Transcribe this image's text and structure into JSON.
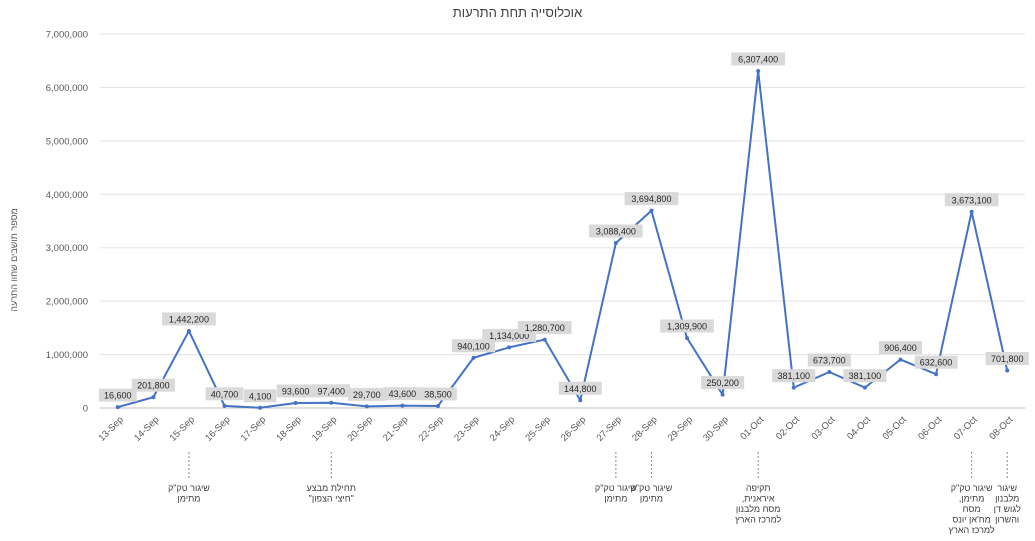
{
  "chart_data": {
    "type": "line",
    "title": "אוכלוסייה תחת התרעות",
    "xlabel": "",
    "ylabel": "מספר תושבים שחוו התרעה",
    "ylim": [
      0,
      7000000
    ],
    "y_ticks": [
      "0",
      "1,000,000",
      "2,000,000",
      "3,000,000",
      "4,000,000",
      "5,000,000",
      "6,000,000",
      "7,000,000"
    ],
    "grid": true,
    "legend": "none",
    "line_color": "#4472c4",
    "categories": [
      "13-Sep",
      "14-Sep",
      "15-Sep",
      "16-Sep",
      "17-Sep",
      "18-Sep",
      "19-Sep",
      "20-Sep",
      "21-Sep",
      "22-Sep",
      "23-Sep",
      "24-Sep",
      "25-Sep",
      "26-Sep",
      "27-Sep",
      "28-Sep",
      "29-Sep",
      "30-Sep",
      "01-Oct",
      "02-Oct",
      "03-Oct",
      "04-Oct",
      "05-Oct",
      "06-Oct",
      "07-Oct",
      "08-Oct"
    ],
    "values": [
      16600,
      201800,
      1442200,
      40700,
      4100,
      93600,
      97400,
      29700,
      43600,
      38500,
      940100,
      1134000,
      1280700,
      144800,
      3088400,
      3694800,
      1309900,
      250200,
      6307400,
      381100,
      673700,
      381100,
      906400,
      632600,
      3673100,
      701800
    ],
    "data_labels": [
      "16,600",
      "201,800",
      "1,442,200",
      "40,700",
      "4,100",
      "93,600",
      "97,400",
      "29,700",
      "43,600",
      "38,500",
      "940,100",
      "1,134,000",
      "1,280,700",
      "144,800",
      "3,088,400",
      "3,694,800",
      "1,309,900",
      "250,200",
      "6,307,400",
      "381,100",
      "673,700",
      "381,100",
      "906,400",
      "632,600",
      "3,673,100",
      "701,800"
    ],
    "annotations": [
      {
        "category": "15-Sep",
        "lines": [
          "שיגור טק\"ק",
          "מתימן"
        ]
      },
      {
        "category": "19-Sep",
        "lines": [
          "תחילת מבצע",
          "\"חיצי הצפון\""
        ]
      },
      {
        "category": "27-Sep",
        "lines": [
          "שיגור טק\"ק",
          "מתימן"
        ]
      },
      {
        "category": "28-Sep",
        "lines": [
          "שיגור טק\"ק",
          "מתימן"
        ]
      },
      {
        "category": "01-Oct",
        "lines": [
          "תקיפה",
          "איראנית,",
          "מסח מלבנון",
          "למרכז הארץ"
        ]
      },
      {
        "category": "07-Oct",
        "lines": [
          "שיגור טק\"ק",
          "מתימן,",
          "מסח",
          "מח'אן יונס",
          "למרכז הארץ"
        ]
      },
      {
        "category": "08-Oct",
        "lines": [
          "שיגור",
          "מלבנון",
          "לגוש דן",
          "והשרון"
        ]
      }
    ]
  }
}
